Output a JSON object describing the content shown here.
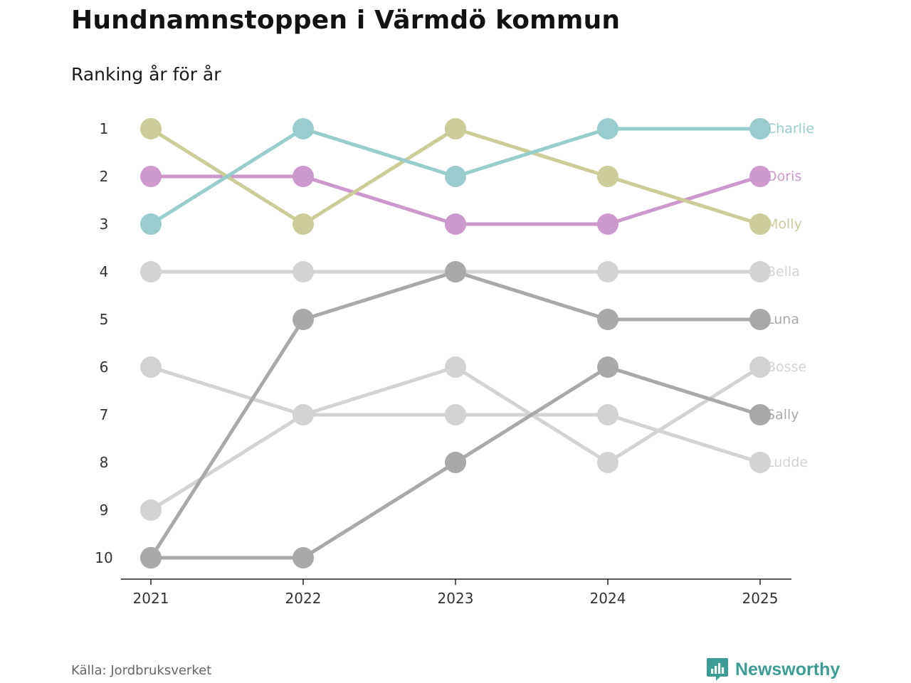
{
  "header": {
    "title": "Hundnamnstoppen i Värmdö kommun",
    "subtitle": "Ranking år för år"
  },
  "footer": {
    "source": "Källa: Jordbruksverket",
    "brand": "Newsworthy"
  },
  "icons": {
    "brand": "newsworthy-bar-chart-icon"
  },
  "colors": {
    "brand": "#3c9d94",
    "axis": "#222222",
    "tick_label": "#333333"
  },
  "chart_data": {
    "type": "line",
    "subtype": "bump",
    "title": "Hundnamnstoppen i Värmdö kommun",
    "subtitle": "Ranking år för år",
    "x": [
      "2021",
      "2022",
      "2023",
      "2024",
      "2025"
    ],
    "y_ticks": [
      "1",
      "2",
      "3",
      "4",
      "5",
      "6",
      "7",
      "8",
      "9",
      "10"
    ],
    "ylim": [
      1,
      10
    ],
    "y_inverted": true,
    "grid": false,
    "xlabel": "",
    "ylabel": "",
    "series": [
      {
        "name": "Bella",
        "color": "#d3d3d3",
        "values": [
          4,
          4,
          4,
          4,
          4
        ]
      },
      {
        "name": "Bosse",
        "color": "#d3d3d3",
        "values": [
          9,
          7,
          6,
          8,
          6
        ]
      },
      {
        "name": "Ludde",
        "color": "#d3d3d3",
        "values": [
          6,
          7,
          7,
          7,
          8
        ]
      },
      {
        "name": "Luna",
        "color": "#a9a9a9",
        "values": [
          10,
          5,
          4,
          5,
          5
        ]
      },
      {
        "name": "Sally",
        "color": "#a9a9a9",
        "values": [
          10,
          10,
          8,
          6,
          7
        ]
      },
      {
        "name": "Doris",
        "color": "#cc99cc",
        "values": [
          2,
          2,
          3,
          3,
          2
        ]
      },
      {
        "name": "Molly",
        "color": "#cccc99",
        "values": [
          1,
          3,
          1,
          2,
          3
        ]
      },
      {
        "name": "Charlie",
        "color": "#99cccc",
        "values": [
          3,
          1,
          2,
          1,
          1
        ]
      }
    ]
  }
}
